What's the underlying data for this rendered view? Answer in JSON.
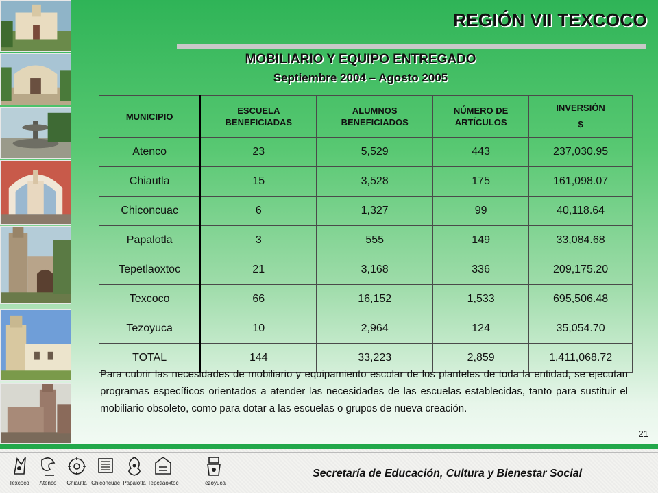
{
  "header": {
    "region": "REGIÓN VII TEXCOCO",
    "title": "MOBILIARIO Y EQUIPO ENTREGADO",
    "subtitle": "Septiembre 2004 – Agosto 2005"
  },
  "table": {
    "columns": [
      [
        "MUNICIPIO"
      ],
      [
        "ESCUELA",
        "BENEFICIADAS"
      ],
      [
        "ALUMNOS",
        "BENEFICIADOS"
      ],
      [
        "NÚMERO DE",
        "ARTÍCULOS"
      ],
      [
        "INVERSIÓN",
        "$"
      ]
    ],
    "rows": [
      [
        "Atenco",
        "23",
        "5,529",
        "443",
        "237,030.95"
      ],
      [
        "Chiautla",
        "15",
        "3,528",
        "175",
        "161,098.07"
      ],
      [
        "Chiconcuac",
        "6",
        "1,327",
        "99",
        "40,118.64"
      ],
      [
        "Papalotla",
        "3",
        "555",
        "149",
        "33,084.68"
      ],
      [
        "Tepetlaoxtoc",
        "21",
        "3,168",
        "336",
        "209,175.20"
      ],
      [
        "Texcoco",
        "66",
        "16,152",
        "1,533",
        "695,506.48"
      ],
      [
        "Tezoyuca",
        "10",
        "2,964",
        "124",
        "35,054.70"
      ],
      [
        "TOTAL",
        "144",
        "33,223",
        "2,859",
        "1,411,068.72"
      ]
    ]
  },
  "paragraph": "Para cubrir las necesidades de mobiliario y equipamiento escolar de los planteles de toda la entidad, se ejecutan programas específicos orientados a atender las necesidades de las escuelas establecidas, tanto para sustituir el mobiliario obsoleto, como para dotar a las escuelas o grupos de nueva creación.",
  "page_number": "21",
  "footer": {
    "secretaria": "Secretaría de Educación, Cultura y Bienestar Social",
    "municipalities": [
      {
        "label": "Texcoco",
        "icon": "texcoco-glyph-icon"
      },
      {
        "label": "Atenco",
        "icon": "atenco-glyph-icon"
      },
      {
        "label": "Chiautla",
        "icon": "chiautla-glyph-icon"
      },
      {
        "label": "Chiconcuac",
        "icon": "chiconcuac-glyph-icon"
      },
      {
        "label": "Papalotla",
        "icon": "papalotla-glyph-icon"
      },
      {
        "label": "Tepetlaoxtoc",
        "icon": "tepetlaoxtoc-glyph-icon"
      },
      {
        "label": "Tezoyuca",
        "icon": "tezoyuca-glyph-icon"
      }
    ]
  },
  "colors": {
    "background_top": "#2fb457",
    "band": "#22a84a"
  }
}
